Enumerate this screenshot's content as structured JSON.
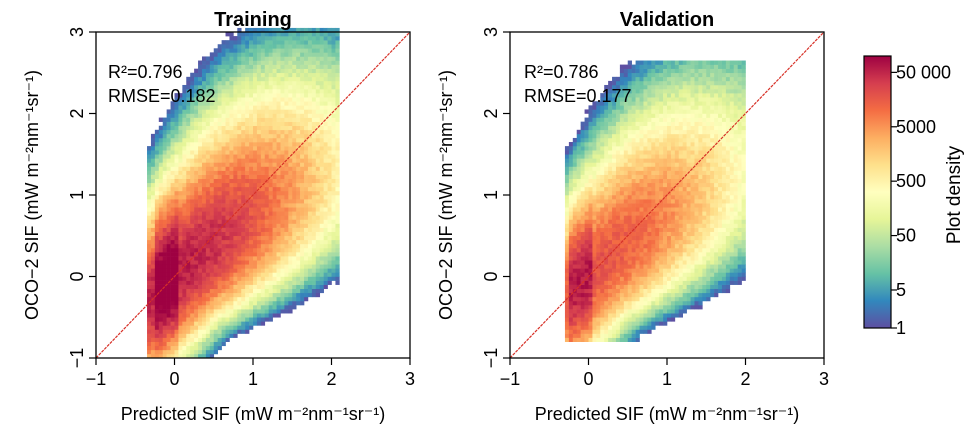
{
  "chart_data": [
    {
      "type": "heatmap",
      "title": "Training",
      "xlabel": "Predicted SIF (mW m⁻²nm⁻¹sr⁻¹)",
      "ylabel": "OCO−2 SIF (mW m⁻²nm⁻¹sr⁻¹)",
      "xlim": [
        -1,
        3
      ],
      "ylim": [
        -1,
        3
      ],
      "xticks": [
        "−1",
        "0",
        "1",
        "2",
        "3"
      ],
      "yticks": [
        "−1",
        "0",
        "1",
        "2",
        "3"
      ],
      "annotations": [
        "R²=0.796",
        "RMSE=0.182"
      ],
      "one_to_one_line": true,
      "density_model": {
        "center": [
          0.0,
          0.0
        ],
        "slope": 1.0,
        "peak_density": 60000,
        "x_range": [
          -0.35,
          2.1
        ],
        "y_range": [
          -1.0,
          3.0
        ]
      }
    },
    {
      "type": "heatmap",
      "title": "Validation",
      "xlabel": "Predicted SIF (mW m⁻²nm⁻¹sr⁻¹)",
      "ylabel": "OCO−2 SIF (mW m⁻²nm⁻¹sr⁻¹)",
      "xlim": [
        -1,
        3
      ],
      "ylim": [
        -1,
        3
      ],
      "xticks": [
        "−1",
        "0",
        "1",
        "2",
        "3"
      ],
      "yticks": [
        "−1",
        "0",
        "1",
        "2",
        "3"
      ],
      "annotations": [
        "R²=0.786",
        "RMSE=0.177"
      ],
      "one_to_one_line": true,
      "density_model": {
        "center": [
          0.0,
          0.0
        ],
        "slope": 1.0,
        "peak_density": 20000,
        "x_range": [
          -0.3,
          2.0
        ],
        "y_range": [
          -0.8,
          2.6
        ]
      }
    }
  ],
  "colorbar": {
    "label": "Plot density",
    "scale": "log",
    "range": [
      1,
      100000
    ],
    "ticks": [
      "50 000",
      "5000",
      "500",
      "50",
      "5",
      "1"
    ],
    "tick_values": [
      50000,
      5000,
      500,
      50,
      5,
      1
    ],
    "colors": [
      "#5e4fa2",
      "#3288bd",
      "#66c2a5",
      "#abdda4",
      "#e6f598",
      "#ffffbf",
      "#fee08b",
      "#fdae61",
      "#f46d43",
      "#d53e4f",
      "#9e0142"
    ]
  }
}
